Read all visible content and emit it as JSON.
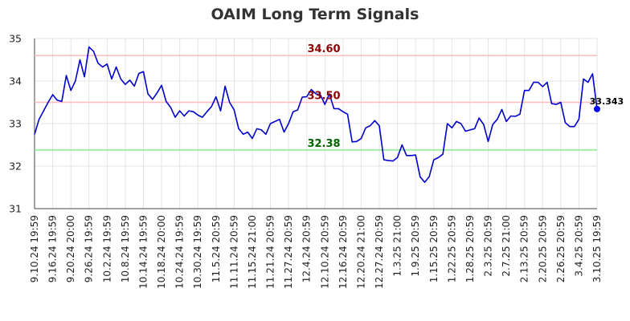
{
  "chart_data": {
    "type": "line",
    "title": "OAIM Long Term Signals",
    "xlabel": "",
    "ylabel": "",
    "ylim": [
      31,
      35
    ],
    "y_ticks": [
      "31",
      "32",
      "33",
      "34",
      "35"
    ],
    "x_tick_labels": [
      "9.10.24 19:59",
      "9.16.24 19:59",
      "9.20.24 20:00",
      "9.26.24 19:59",
      "10.2.24 19:59",
      "10.8.24 19:59",
      "10.14.24 19:59",
      "10.18.24 20:00",
      "10.24.24 19:59",
      "10.30.24 19:59",
      "11.5.24 20:59",
      "11.11.24 20:59",
      "11.15.24 21:00",
      "11.21.24 20:59",
      "11.27.24 20:59",
      "12.4.24 20:59",
      "12.10.24 20:59",
      "12.16.24 20:59",
      "12.20.24 21:00",
      "12.27.24 20:59",
      "1.3.25 21:00",
      "1.9.25 20:59",
      "1.15.25 20:59",
      "1.22.25 20:59",
      "1.28.25 20:59",
      "2.3.25 20:59",
      "2.7.25 21:00",
      "2.13.25 20:59",
      "2.20.25 20:59",
      "2.26.25 20:59",
      "3.4.25 20:59",
      "3.10.25 19:59"
    ],
    "grid": true,
    "series": [
      {
        "color": "#0000cc",
        "values": [
          32.75,
          33.1,
          33.3,
          33.5,
          33.68,
          33.55,
          33.52,
          34.13,
          33.78,
          34.0,
          34.5,
          34.1,
          34.8,
          34.7,
          34.42,
          34.33,
          34.4,
          34.05,
          34.33,
          34.05,
          33.92,
          34.02,
          33.88,
          34.18,
          34.22,
          33.7,
          33.57,
          33.72,
          33.9,
          33.52,
          33.38,
          33.15,
          33.3,
          33.18,
          33.3,
          33.28,
          33.2,
          33.15,
          33.28,
          33.4,
          33.63,
          33.3,
          33.88,
          33.5,
          33.32,
          32.88,
          32.75,
          32.8,
          32.65,
          32.88,
          32.85,
          32.75,
          33.0,
          33.05,
          33.1,
          32.8,
          33.0,
          33.28,
          33.32,
          33.62,
          33.63,
          33.8,
          33.7,
          33.68,
          33.45,
          33.7,
          33.35,
          33.35,
          33.28,
          33.22,
          32.57,
          32.58,
          32.65,
          32.9,
          32.95,
          33.07,
          32.95,
          32.15,
          32.13,
          32.12,
          32.2,
          32.5,
          32.25,
          32.25,
          32.26,
          31.75,
          31.62,
          31.75,
          32.15,
          32.2,
          32.28,
          33.0,
          32.9,
          33.05,
          33.0,
          32.82,
          32.85,
          32.88,
          33.13,
          32.98,
          32.58,
          32.98,
          33.1,
          33.33,
          33.05,
          33.18,
          33.17,
          33.22,
          33.78,
          33.78,
          33.97,
          33.97,
          33.87,
          33.97,
          33.47,
          33.45,
          33.5,
          33.02,
          32.93,
          32.93,
          33.1,
          34.05,
          33.97,
          34.17,
          33.343
        ]
      }
    ],
    "reference_lines": [
      {
        "value": 34.6,
        "label": "34.60",
        "line_color": "#ffbbbb",
        "label_color": "#8b0000"
      },
      {
        "value": 33.5,
        "label": "33.50",
        "line_color": "#ffbbbb",
        "label_color": "#8b0000"
      },
      {
        "value": 32.38,
        "label": "32.38",
        "line_color": "#88ee88",
        "label_color": "#006400"
      }
    ],
    "last_value_label": "33.343",
    "last_point_color": "#0000ff"
  }
}
